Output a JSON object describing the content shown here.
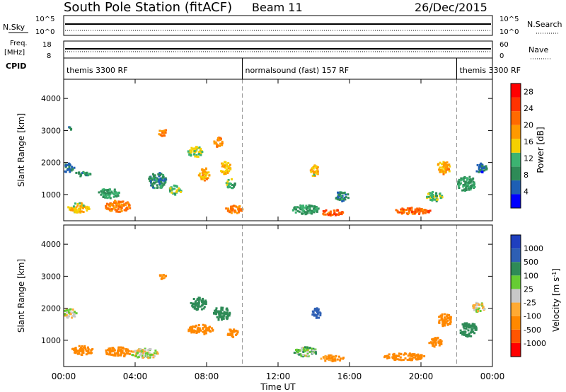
{
  "header": {
    "station": "South Pole Station (fitACF)",
    "beam": "Beam 11",
    "date": "26/Dec/2015"
  },
  "top_panels": {
    "nsky_label": "N.Sky",
    "nsearch_label": "N.Search",
    "nsky_ticks": [
      "10^5",
      "10^0"
    ],
    "freq_label": "Freq.",
    "freq_unit": "[MHz]",
    "freq_ticks": [
      "18",
      "8"
    ],
    "nave_label": "Nave",
    "nave_ticks": [
      "60",
      "0"
    ],
    "cpid_label": "CPID",
    "cpid_segments": [
      {
        "start_h": 0,
        "end_h": 10,
        "label": "themis 3300 RF"
      },
      {
        "start_h": 10,
        "end_h": 22,
        "label": "normalsound (fast) 157 RF"
      },
      {
        "start_h": 22,
        "end_h": 24,
        "label": "themis 3300 RF"
      }
    ]
  },
  "colors": {
    "power_scale": [
      "#0000ff",
      "#1e5fb4",
      "#2e8b57",
      "#3cb371",
      "#f5d000",
      "#ff9900",
      "#ff6a00",
      "#ff3300",
      "#ff0000"
    ],
    "velocity_scale": [
      "#ff0000",
      "#ff5500",
      "#ff8800",
      "#ffaa33",
      "#c8c8c8",
      "#66cc33",
      "#2e8b57",
      "#2e5fb4",
      "#1f3fbf"
    ],
    "ground_scatter": "#bebebe"
  },
  "chart_data": [
    {
      "type": "heatmap",
      "title": "",
      "xlabel": "Time UT",
      "ylabel": "Slant Range [km]",
      "x_ticks": [
        "00:00",
        "04:00",
        "08:00",
        "12:00",
        "16:00",
        "20:00",
        "00:00"
      ],
      "xlim": [
        0,
        24
      ],
      "y_ticks": [
        1000,
        2000,
        3000,
        4000
      ],
      "ylim": [
        180,
        4600
      ],
      "colorbar_label": "Power [dB]",
      "colorbar_ticks": [
        4,
        8,
        12,
        16,
        20,
        24,
        28
      ],
      "colorbar_range": [
        0,
        30
      ],
      "blobs": [
        {
          "t": 0.2,
          "r": 1800,
          "dt": 0.7,
          "dr": 280,
          "v": 6
        },
        {
          "t": 0.3,
          "r": 3050,
          "dt": 0.15,
          "dr": 180,
          "v": 6
        },
        {
          "t": 1.0,
          "r": 1600,
          "dt": 0.9,
          "dr": 150,
          "v": 8
        },
        {
          "t": 0.8,
          "r": 550,
          "dt": 1.2,
          "dr": 300,
          "v": 16
        },
        {
          "t": 3.0,
          "r": 600,
          "dt": 1.5,
          "dr": 350,
          "v": 20
        },
        {
          "t": 2.5,
          "r": 1000,
          "dt": 1.2,
          "dr": 300,
          "v": 10
        },
        {
          "t": 5.5,
          "r": 2900,
          "dt": 0.5,
          "dr": 220,
          "v": 20
        },
        {
          "t": 5.2,
          "r": 1400,
          "dt": 1.0,
          "dr": 500,
          "v": 8
        },
        {
          "t": 6.2,
          "r": 1100,
          "dt": 0.7,
          "dr": 300,
          "v": 12
        },
        {
          "t": 7.3,
          "r": 2300,
          "dt": 0.8,
          "dr": 350,
          "v": 14
        },
        {
          "t": 7.8,
          "r": 1600,
          "dt": 0.6,
          "dr": 400,
          "v": 18
        },
        {
          "t": 8.6,
          "r": 2600,
          "dt": 0.5,
          "dr": 300,
          "v": 20
        },
        {
          "t": 9.0,
          "r": 1800,
          "dt": 0.6,
          "dr": 400,
          "v": 16
        },
        {
          "t": 9.3,
          "r": 1300,
          "dt": 0.5,
          "dr": 300,
          "v": 12
        },
        {
          "t": 9.5,
          "r": 500,
          "dt": 1.0,
          "dr": 250,
          "v": 20
        },
        {
          "t": 14.0,
          "r": 1700,
          "dt": 0.5,
          "dr": 350,
          "v": 16
        },
        {
          "t": 13.5,
          "r": 500,
          "dt": 1.5,
          "dr": 300,
          "v": 10
        },
        {
          "t": 15.5,
          "r": 900,
          "dt": 0.8,
          "dr": 300,
          "v": 8
        },
        {
          "t": 15.0,
          "r": 400,
          "dt": 1.2,
          "dr": 200,
          "v": 22
        },
        {
          "t": 19.5,
          "r": 450,
          "dt": 2.0,
          "dr": 220,
          "v": 22
        },
        {
          "t": 20.7,
          "r": 900,
          "dt": 0.9,
          "dr": 300,
          "v": 12
        },
        {
          "t": 21.2,
          "r": 1800,
          "dt": 0.8,
          "dr": 400,
          "v": 18
        },
        {
          "t": 22.5,
          "r": 1300,
          "dt": 1.0,
          "dr": 500,
          "v": 10
        },
        {
          "t": 23.3,
          "r": 1800,
          "dt": 0.7,
          "dr": 300,
          "v": 6
        }
      ]
    },
    {
      "type": "heatmap",
      "title": "",
      "xlabel": "Time UT",
      "ylabel": "Slant Range [km]",
      "x_ticks": [
        "00:00",
        "04:00",
        "08:00",
        "12:00",
        "16:00",
        "20:00",
        "00:00"
      ],
      "xlim": [
        0,
        24
      ],
      "y_ticks": [
        1000,
        2000,
        3000,
        4000
      ],
      "ylim": [
        180,
        4600
      ],
      "colorbar_label": "Velocity [m s^-1]",
      "colorbar_ticks": [
        -1000,
        -500,
        -100,
        -25,
        25,
        100,
        500,
        1000
      ],
      "blobs": [
        {
          "t": 0.3,
          "r": 1800,
          "dt": 0.8,
          "dr": 280,
          "v": 0
        },
        {
          "t": 1.0,
          "r": 650,
          "dt": 1.2,
          "dr": 280,
          "v": -300
        },
        {
          "t": 3.0,
          "r": 600,
          "dt": 1.5,
          "dr": 300,
          "v": -400
        },
        {
          "t": 4.5,
          "r": 550,
          "dt": 1.5,
          "dr": 300,
          "v": 0
        },
        {
          "t": 5.5,
          "r": 2950,
          "dt": 0.4,
          "dr": 200,
          "v": -150
        },
        {
          "t": 7.5,
          "r": 2100,
          "dt": 0.9,
          "dr": 400,
          "v": 300
        },
        {
          "t": 7.6,
          "r": 1300,
          "dt": 1.4,
          "dr": 300,
          "v": -300
        },
        {
          "t": 8.8,
          "r": 1800,
          "dt": 0.9,
          "dr": 450,
          "v": 300
        },
        {
          "t": 9.4,
          "r": 1200,
          "dt": 0.6,
          "dr": 300,
          "v": -200
        },
        {
          "t": 14.1,
          "r": 1800,
          "dt": 0.5,
          "dr": 350,
          "v": 700
        },
        {
          "t": 13.5,
          "r": 600,
          "dt": 1.3,
          "dr": 300,
          "v": 60
        },
        {
          "t": 15.0,
          "r": 400,
          "dt": 1.3,
          "dr": 200,
          "v": -150
        },
        {
          "t": 19.0,
          "r": 450,
          "dt": 2.3,
          "dr": 220,
          "v": -400
        },
        {
          "t": 20.8,
          "r": 900,
          "dt": 0.8,
          "dr": 300,
          "v": -300
        },
        {
          "t": 21.3,
          "r": 1600,
          "dt": 0.8,
          "dr": 400,
          "v": -400
        },
        {
          "t": 22.6,
          "r": 1300,
          "dt": 1.0,
          "dr": 450,
          "v": 200
        },
        {
          "t": 23.2,
          "r": 2000,
          "dt": 0.7,
          "dr": 300,
          "v": 0
        }
      ]
    }
  ]
}
